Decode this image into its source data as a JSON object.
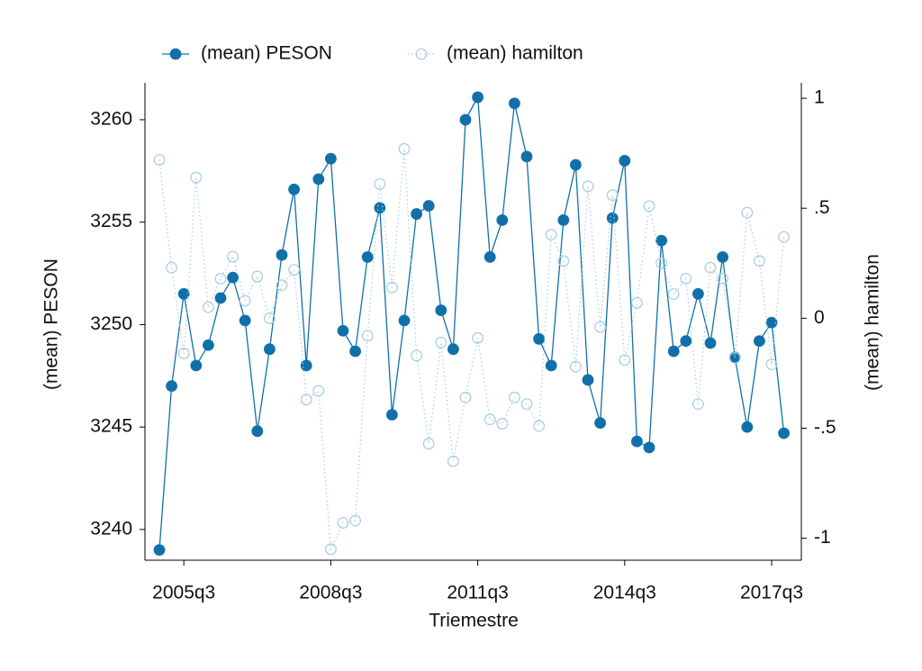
{
  "chart_data": {
    "type": "line",
    "x": [
      "2005q1",
      "2005q2",
      "2005q3",
      "2005q4",
      "2006q1",
      "2006q2",
      "2006q3",
      "2006q4",
      "2007q1",
      "2007q2",
      "2007q3",
      "2007q4",
      "2008q1",
      "2008q2",
      "2008q3",
      "2008q4",
      "2009q1",
      "2009q2",
      "2009q3",
      "2009q4",
      "2010q1",
      "2010q2",
      "2010q3",
      "2010q4",
      "2011q1",
      "2011q2",
      "2011q3",
      "2011q4",
      "2012q1",
      "2012q2",
      "2012q3",
      "2012q4",
      "2013q1",
      "2013q2",
      "2013q3",
      "2013q4",
      "2014q1",
      "2014q2",
      "2014q3",
      "2014q4",
      "2015q1",
      "2015q2",
      "2015q3",
      "2015q4",
      "2016q1",
      "2016q2",
      "2016q3",
      "2016q4",
      "2017q1",
      "2017q2",
      "2017q3",
      "2017q4"
    ],
    "xticks": [
      "2005q3",
      "2008q3",
      "2011q3",
      "2014q3",
      "2017q3"
    ],
    "xlabel": "Triemestre",
    "ylabel": "(mean) PESON",
    "y2label": "(mean) hamilton",
    "ylim": [
      3238.5,
      3261.8
    ],
    "yticks": [
      3240,
      3245,
      3250,
      3255,
      3260
    ],
    "y2lim": [
      -1.1,
      1.07
    ],
    "y2ticks": [
      -1,
      {
        "value": -0.5,
        "label": "-.5"
      },
      0,
      {
        "value": 0.5,
        "label": ".5"
      },
      1
    ],
    "legend": "top",
    "series": [
      {
        "name": "(mean) PESON",
        "color": "#1170aa",
        "values": [
          3239.0,
          3247.0,
          3251.5,
          3248.0,
          3249.0,
          3251.3,
          3252.3,
          3250.2,
          3244.8,
          3248.8,
          3253.4,
          3256.6,
          3248.0,
          3257.1,
          3258.1,
          3249.7,
          3248.7,
          3253.3,
          3255.7,
          3245.6,
          3250.2,
          3255.4,
          3255.8,
          3250.7,
          3248.8,
          3260.0,
          3261.1,
          3253.3,
          3255.1,
          3260.8,
          3258.2,
          3249.3,
          3248.0,
          3255.1,
          3257.8,
          3247.3,
          3245.2,
          3255.2,
          3258.0,
          3244.3,
          3244.0,
          3254.1,
          3248.7,
          3249.2,
          3251.5,
          3249.1,
          3253.3,
          3248.4,
          3245.0,
          3249.2,
          3250.1,
          3244.7
        ]
      },
      {
        "name": "(mean) hamilton",
        "color": "#a6cde0",
        "axis": "y2",
        "values": [
          0.72,
          0.23,
          -0.16,
          0.64,
          0.05,
          0.18,
          0.28,
          0.08,
          0.19,
          0.0,
          0.15,
          0.22,
          -0.37,
          -0.33,
          -1.05,
          -0.93,
          -0.92,
          -0.08,
          0.61,
          0.14,
          0.77,
          -0.17,
          -0.57,
          -0.11,
          -0.65,
          -0.36,
          -0.09,
          -0.46,
          -0.48,
          -0.36,
          -0.39,
          -0.49,
          0.38,
          0.26,
          -0.22,
          0.6,
          -0.04,
          0.56,
          -0.19,
          0.07,
          0.51,
          0.25,
          0.11,
          0.18,
          -0.39,
          0.23,
          0.18,
          -0.18,
          0.48,
          0.26,
          -0.21,
          0.37
        ]
      }
    ]
  }
}
